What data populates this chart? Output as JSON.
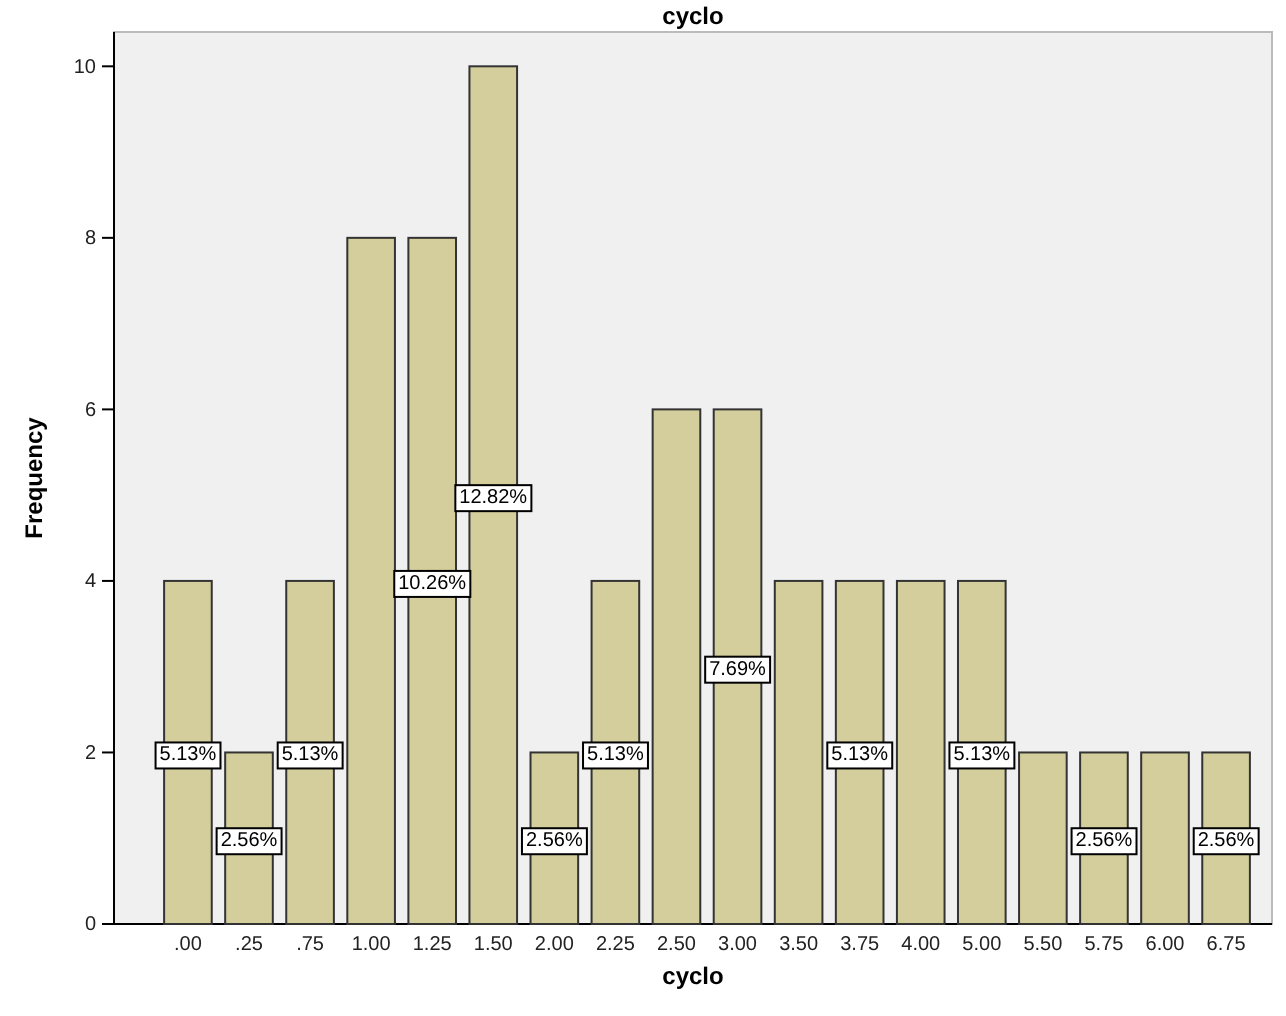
{
  "chart_data": {
    "type": "bar",
    "title": "cyclo",
    "xlabel": "cyclo",
    "ylabel": "Frequency",
    "categories": [
      ".00",
      ".25",
      ".75",
      "1.00",
      "1.25",
      "1.50",
      "2.00",
      "2.25",
      "2.50",
      "3.00",
      "3.50",
      "3.75",
      "4.00",
      "5.00",
      "5.50",
      "5.75",
      "6.00",
      "6.75"
    ],
    "values": [
      4,
      2,
      4,
      8,
      8,
      10,
      2,
      4,
      6,
      6,
      4,
      4,
      4,
      4,
      2,
      2,
      2,
      2
    ],
    "annotations": [
      {
        "text": "5.13%",
        "x": ".00",
        "y": 2
      },
      {
        "text": "2.56%",
        "x": ".25",
        "y": 1
      },
      {
        "text": "5.13%",
        "x": ".75",
        "y": 2
      },
      {
        "text": "10.26%",
        "x": "1.25",
        "y": 4
      },
      {
        "text": "12.82%",
        "x": "1.50",
        "y": 5
      },
      {
        "text": "2.56%",
        "x": "2.00",
        "y": 1
      },
      {
        "text": "5.13%",
        "x": "2.25",
        "y": 2
      },
      {
        "text": "7.69%",
        "x": "3.00",
        "y": 3
      },
      {
        "text": "5.13%",
        "x": "3.75",
        "y": 2
      },
      {
        "text": "5.13%",
        "x": "5.00",
        "y": 2
      },
      {
        "text": "2.56%",
        "x": "5.75",
        "y": 1
      },
      {
        "text": "2.56%",
        "x": "6.75",
        "y": 1
      }
    ],
    "color": "#d3ce9c",
    "ylim": [
      0,
      10.4
    ],
    "yticks": [
      0,
      2,
      4,
      6,
      8,
      10
    ],
    "grid": false
  }
}
